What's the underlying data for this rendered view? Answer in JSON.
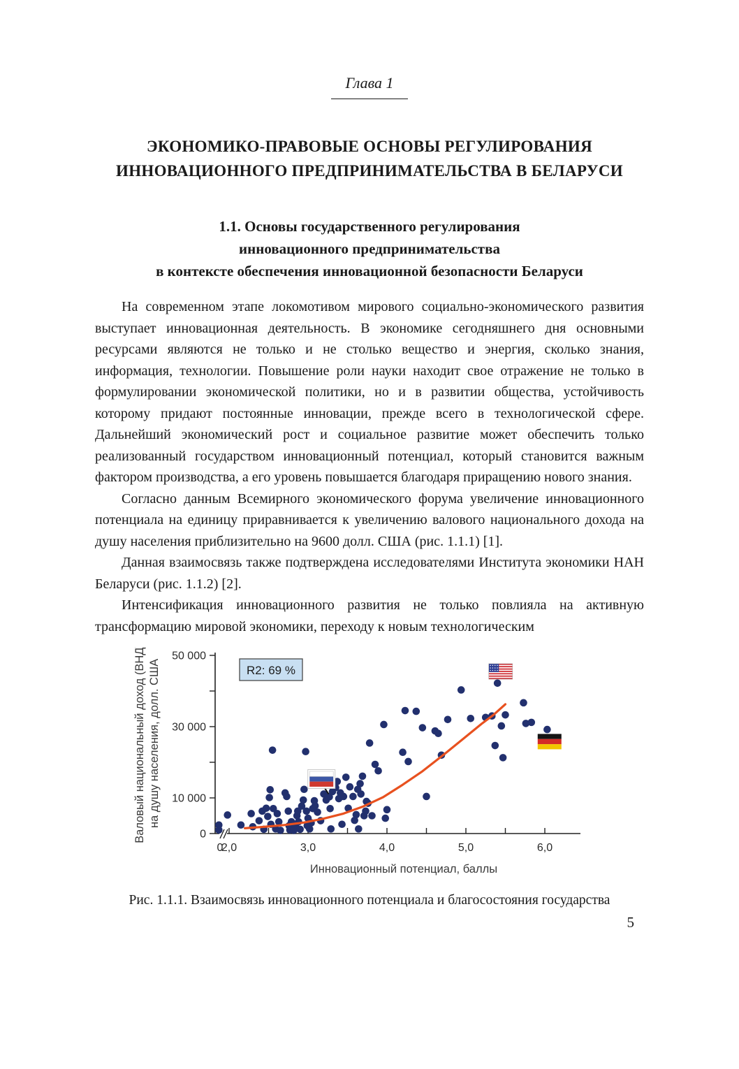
{
  "page": {
    "chapter_label": "Глава 1",
    "title_line1": "ЭКОНОМИКО-ПРАВОВЫЕ ОСНОВЫ РЕГУЛИРОВАНИЯ",
    "title_line2": "ИННОВАЦИОННОГО ПРЕДПРИНИМАТЕЛЬСТВА В БЕЛАРУСИ",
    "section_heading_line1": "1.1. Основы государственного регулирования",
    "section_heading_line2": "инновационного предпринимательства",
    "section_heading_line3": "в контексте обеспечения инновационной безопасности Беларуси",
    "paragraphs": [
      "На современном этапе локомотивом мирового социально-экономического развития выступает инновационная деятельность. В экономике сегодняшнего дня основными ресурсами являются не только и не столько вещество и энергия, сколько знания, информация, технологии. Повышение роли науки находит свое отражение не только в формулировании экономической политики, но и в развитии общества, устойчивость которому придают постоянные инновации, прежде всего в технологической сфере. Дальнейший экономический рост и социальное развитие может обеспечить только реализованный государством инновационный потенциал, который становится важным фактором производства, а его уровень повышается благодаря приращению нового знания.",
      "Согласно данным Всемирного экономического форума увеличение инновационного потенциала на единицу приравнивается к увеличению валового национального дохода на душу населения приблизительно на 9600 долл. США (рис. 1.1.1) [1].",
      "Данная взаимосвязь также подтверждена исследователями Института экономики НАН Беларуси (рис. 1.1.2) [2].",
      "Интенсификация инновационного развития не только повлияла на активную трансформацию мировой экономики, переходу к новым технологическим"
    ],
    "figure_caption": "Рис. 1.1.1. Взаимосвязь инновационного потенциала и благосостояния государства",
    "page_number": "5"
  },
  "chart_data": {
    "type": "scatter",
    "title": "",
    "xlabel": "Инновационный потенциал, баллы",
    "ylabel_line1": "Валовый национальный доход (ВНД)",
    "ylabel_line2": "на душу населения, долл. США",
    "r2_label": "R2: 69 %",
    "origin_label": "0",
    "axis_break": true,
    "grid": false,
    "legend": "none",
    "xlim": [
      1.85,
      6.45
    ],
    "ylim": [
      0,
      50000
    ],
    "x_ticks_labeled": [
      2.0,
      3.0,
      4.0,
      5.0,
      6.0
    ],
    "x_tick_labels": [
      "2,0",
      "3,0",
      "4,0",
      "5,0",
      "6,0"
    ],
    "x_ticks_all": [
      2.0,
      2.5,
      3.0,
      3.5,
      4.0,
      4.5,
      5.0,
      5.5,
      6.0
    ],
    "y_ticks_labeled": [
      0,
      10000,
      30000,
      50000
    ],
    "y_tick_labels": [
      "0",
      "10 000",
      "30 000",
      "50 000"
    ],
    "y_ticks_all": [
      0,
      10000,
      20000,
      30000,
      40000,
      50000
    ],
    "points": [
      [
        1.87,
        2400
      ],
      [
        1.87,
        1000
      ],
      [
        1.98,
        5200
      ],
      [
        2.15,
        2400
      ],
      [
        2.28,
        5600
      ],
      [
        2.3,
        1900
      ],
      [
        2.38,
        3600
      ],
      [
        2.42,
        6300
      ],
      [
        2.44,
        1200
      ],
      [
        2.47,
        7100
      ],
      [
        2.49,
        4800
      ],
      [
        2.51,
        10100
      ],
      [
        2.52,
        12300
      ],
      [
        2.53,
        2600
      ],
      [
        2.55,
        23400
      ],
      [
        2.56,
        7000
      ],
      [
        2.59,
        1300
      ],
      [
        2.61,
        5600
      ],
      [
        2.63,
        3300
      ],
      [
        2.65,
        900
      ],
      [
        2.71,
        11400
      ],
      [
        2.73,
        10400
      ],
      [
        2.75,
        6300
      ],
      [
        2.76,
        2200
      ],
      [
        2.77,
        1000
      ],
      [
        2.79,
        3300
      ],
      [
        2.81,
        1400
      ],
      [
        2.82,
        900
      ],
      [
        2.84,
        2200
      ],
      [
        2.86,
        5000
      ],
      [
        2.87,
        6300
      ],
      [
        2.88,
        3300
      ],
      [
        2.9,
        1200
      ],
      [
        2.92,
        7700
      ],
      [
        2.94,
        9400
      ],
      [
        2.95,
        12400
      ],
      [
        2.97,
        23000
      ],
      [
        2.98,
        6300
      ],
      [
        2.99,
        2200
      ],
      [
        3.0,
        4300
      ],
      [
        3.02,
        1300
      ],
      [
        3.04,
        3000
      ],
      [
        3.06,
        7000
      ],
      [
        3.08,
        9200
      ],
      [
        3.09,
        7800
      ],
      [
        3.12,
        6000
      ],
      [
        3.16,
        3600
      ],
      [
        3.2,
        11100
      ],
      [
        3.23,
        9400
      ],
      [
        3.27,
        10300
      ],
      [
        3.28,
        7000
      ],
      [
        3.29,
        1300
      ],
      [
        3.31,
        11800
      ],
      [
        3.35,
        12900
      ],
      [
        3.37,
        14600
      ],
      [
        3.39,
        9800
      ],
      [
        3.41,
        11400
      ],
      [
        3.43,
        2600
      ],
      [
        3.45,
        10400
      ],
      [
        3.48,
        15800
      ],
      [
        3.51,
        7100
      ],
      [
        3.53,
        13100
      ],
      [
        3.57,
        10400
      ],
      [
        3.59,
        3700
      ],
      [
        3.61,
        5300
      ],
      [
        3.63,
        12400
      ],
      [
        3.64,
        1300
      ],
      [
        3.66,
        14000
      ],
      [
        3.67,
        11100
      ],
      [
        3.69,
        16100
      ],
      [
        3.71,
        5000
      ],
      [
        3.73,
        6300
      ],
      [
        3.74,
        9000
      ],
      [
        3.76,
        8500
      ],
      [
        3.78,
        25400
      ],
      [
        3.81,
        5000
      ],
      [
        3.85,
        19400
      ],
      [
        3.89,
        17600
      ],
      [
        3.96,
        30600
      ],
      [
        3.98,
        4300
      ],
      [
        4.0,
        6700
      ],
      [
        4.2,
        22800
      ],
      [
        4.23,
        34500
      ],
      [
        4.27,
        20200
      ],
      [
        4.37,
        34300
      ],
      [
        4.45,
        29700
      ],
      [
        4.5,
        10400
      ],
      [
        4.61,
        28800
      ],
      [
        4.65,
        28100
      ],
      [
        4.69,
        22000
      ],
      [
        4.77,
        32000
      ],
      [
        4.94,
        40300
      ],
      [
        5.06,
        32300
      ],
      [
        5.25,
        32600
      ],
      [
        5.33,
        33000
      ],
      [
        5.37,
        24700
      ],
      [
        5.4,
        42200
      ],
      [
        5.45,
        30200
      ],
      [
        5.47,
        21300
      ],
      [
        5.5,
        33300
      ],
      [
        5.73,
        36700
      ],
      [
        5.76,
        30900
      ],
      [
        5.83,
        31200
      ],
      [
        6.03,
        29200
      ]
    ],
    "trend": [
      [
        2.2,
        1500
      ],
      [
        2.45,
        1900
      ],
      [
        2.7,
        2400
      ],
      [
        2.95,
        3100
      ],
      [
        3.2,
        4200
      ],
      [
        3.45,
        5600
      ],
      [
        3.7,
        7600
      ],
      [
        3.95,
        10200
      ],
      [
        4.2,
        13700
      ],
      [
        4.45,
        17500
      ],
      [
        4.7,
        21800
      ],
      [
        4.95,
        26300
      ],
      [
        5.2,
        30800
      ],
      [
        5.35,
        33300
      ],
      [
        5.5,
        36300
      ]
    ],
    "flags": [
      {
        "country": "russia",
        "x": 3.17,
        "y": 15300,
        "pointer": [
          3.27,
          10300
        ]
      },
      {
        "country": "usa",
        "x": 5.44,
        "y": 45500
      },
      {
        "country": "germany",
        "x": 6.06,
        "y": 25800
      }
    ],
    "colors": {
      "dot": "#22306e",
      "trend": "#e8511f",
      "r2_box_fill": "#c8dff2",
      "r2_box_border": "#4a4a4a",
      "axis": "#222222",
      "label_text": "#3a3a3a"
    }
  }
}
